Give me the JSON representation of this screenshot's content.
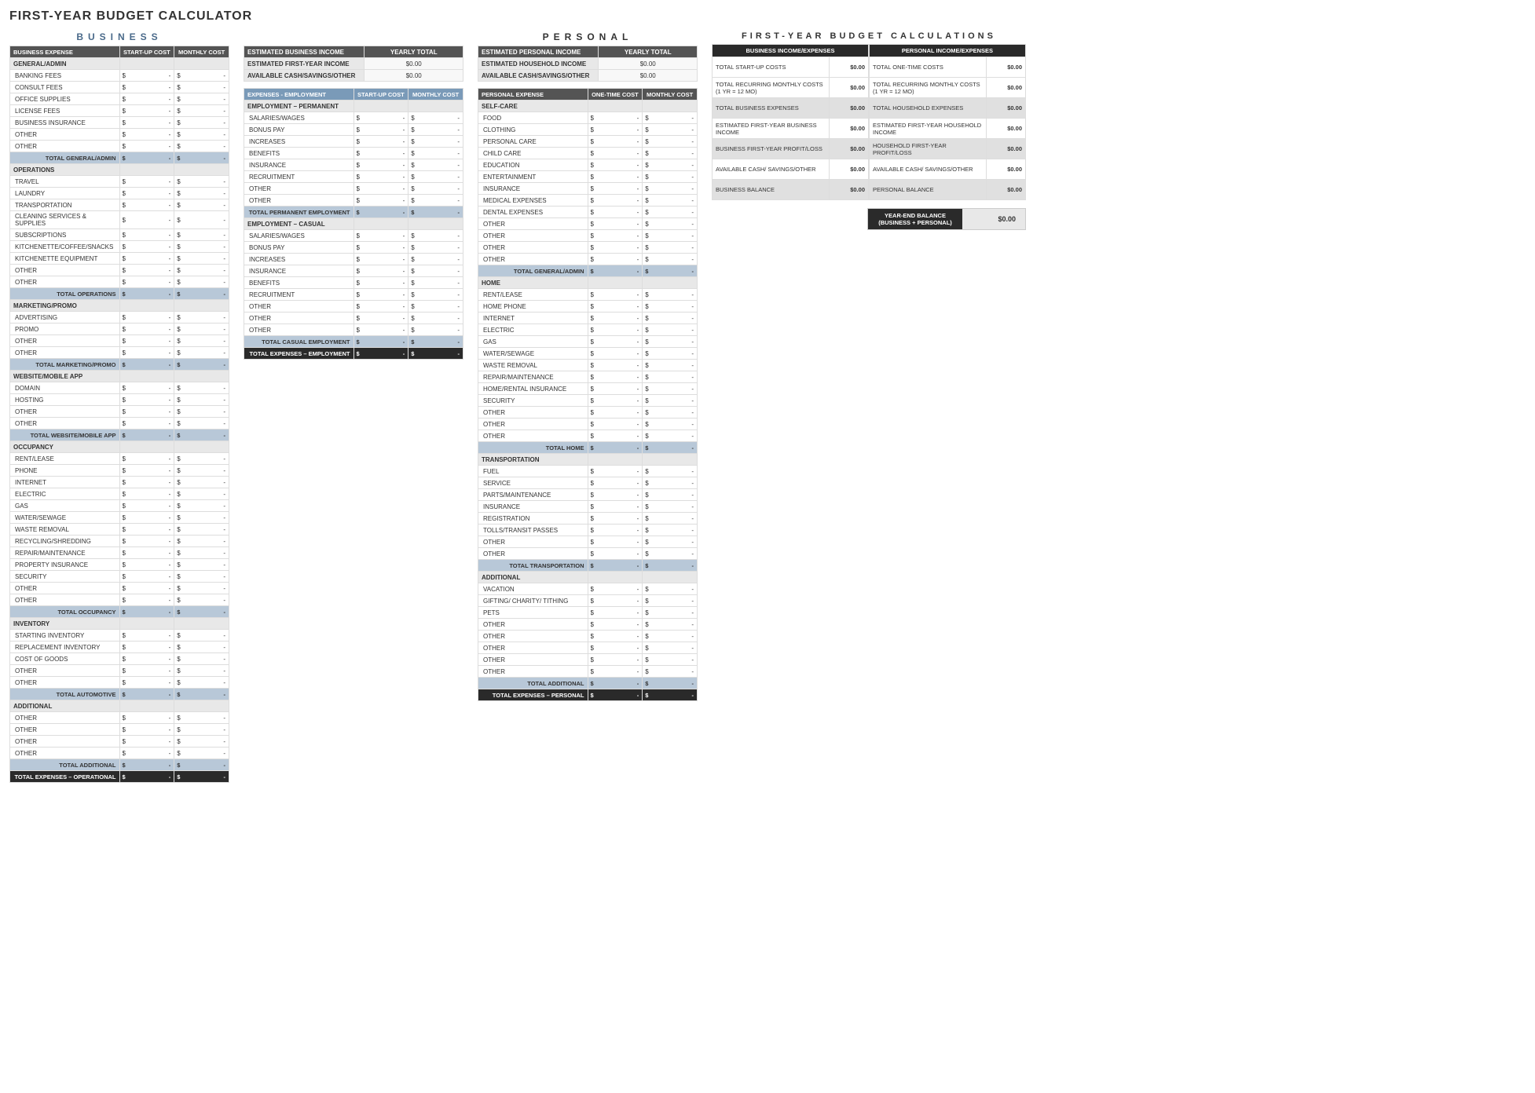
{
  "pageTitle": "FIRST-YEAR BUDGET CALCULATOR",
  "currency": "$",
  "dash": "-",
  "zeroDollar": "$0.00",
  "headers": {
    "businessExpense": "BUSINESS EXPENSE",
    "startupCost": "START-UP COST",
    "monthlyCost": "MONTHLY COST",
    "expensesEmployment": "EXPENSES - EMPLOYMENT",
    "personalExpense": "PERSONAL EXPENSE",
    "oneTimeCost": "ONE-TIME COST",
    "yearlyTotal": "YEARLY TOTAL"
  },
  "sectionTitles": {
    "business": "BUSINESS",
    "personal": "PERSONAL",
    "calculations": "FIRST-YEAR BUDGET CALCULATIONS"
  },
  "bizIncome": [
    {
      "label": "ESTIMATED BUSINESS INCOME",
      "valHeader": true
    },
    {
      "label": "ESTIMATED FIRST-YEAR INCOME"
    },
    {
      "label": "AVAILABLE CASH/SAVINGS/OTHER"
    }
  ],
  "persIncome": [
    {
      "label": "ESTIMATED PERSONAL INCOME",
      "valHeader": true
    },
    {
      "label": "ESTIMATED HOUSEHOLD INCOME"
    },
    {
      "label": "AVAILABLE CASH/SAVINGS/OTHER"
    }
  ],
  "bizOperational": [
    {
      "type": "cat",
      "label": "GENERAL/ADMIN"
    },
    {
      "type": "line",
      "label": "BANKING FEES"
    },
    {
      "type": "line",
      "label": "CONSULT FEES"
    },
    {
      "type": "line",
      "label": "OFFICE SUPPLIES"
    },
    {
      "type": "line",
      "label": "LICENSE FEES"
    },
    {
      "type": "line",
      "label": "BUSINESS INSURANCE"
    },
    {
      "type": "line",
      "label": "OTHER"
    },
    {
      "type": "line",
      "label": "OTHER"
    },
    {
      "type": "sub",
      "label": "TOTAL GENERAL/ADMIN"
    },
    {
      "type": "cat",
      "label": "OPERATIONS"
    },
    {
      "type": "line",
      "label": "TRAVEL"
    },
    {
      "type": "line",
      "label": "LAUNDRY"
    },
    {
      "type": "line",
      "label": "TRANSPORTATION"
    },
    {
      "type": "line",
      "label": "CLEANING SERVICES & SUPPLIES"
    },
    {
      "type": "line",
      "label": "SUBSCRIPTIONS"
    },
    {
      "type": "line",
      "label": "KITCHENETTE/COFFEE/SNACKS"
    },
    {
      "type": "line",
      "label": "KITCHENETTE EQUIPMENT"
    },
    {
      "type": "line",
      "label": "OTHER"
    },
    {
      "type": "line",
      "label": "OTHER"
    },
    {
      "type": "sub",
      "label": "TOTAL OPERATIONS"
    },
    {
      "type": "cat",
      "label": "MARKETING/PROMO"
    },
    {
      "type": "line",
      "label": "ADVERTISING"
    },
    {
      "type": "line",
      "label": "PROMO"
    },
    {
      "type": "line",
      "label": "OTHER"
    },
    {
      "type": "line",
      "label": "OTHER"
    },
    {
      "type": "sub",
      "label": "TOTAL MARKETING/PROMO"
    },
    {
      "type": "cat",
      "label": "WEBSITE/MOBILE APP"
    },
    {
      "type": "line",
      "label": "DOMAIN"
    },
    {
      "type": "line",
      "label": "HOSTING"
    },
    {
      "type": "line",
      "label": "OTHER"
    },
    {
      "type": "line",
      "label": "OTHER"
    },
    {
      "type": "sub",
      "label": "TOTAL WEBSITE/MOBILE APP"
    },
    {
      "type": "cat",
      "label": "OCCUPANCY"
    },
    {
      "type": "line",
      "label": "RENT/LEASE"
    },
    {
      "type": "line",
      "label": "PHONE"
    },
    {
      "type": "line",
      "label": "INTERNET"
    },
    {
      "type": "line",
      "label": "ELECTRIC"
    },
    {
      "type": "line",
      "label": "GAS"
    },
    {
      "type": "line",
      "label": "WATER/SEWAGE"
    },
    {
      "type": "line",
      "label": "WASTE REMOVAL"
    },
    {
      "type": "line",
      "label": "RECYCLING/SHREDDING"
    },
    {
      "type": "line",
      "label": "REPAIR/MAINTENANCE"
    },
    {
      "type": "line",
      "label": "PROPERTY INSURANCE"
    },
    {
      "type": "line",
      "label": "SECURITY"
    },
    {
      "type": "line",
      "label": "OTHER"
    },
    {
      "type": "line",
      "label": "OTHER"
    },
    {
      "type": "sub",
      "label": "TOTAL OCCUPANCY"
    },
    {
      "type": "cat",
      "label": "INVENTORY"
    },
    {
      "type": "line",
      "label": "STARTING INVENTORY"
    },
    {
      "type": "line",
      "label": "REPLACEMENT INVENTORY"
    },
    {
      "type": "line",
      "label": "COST OF GOODS"
    },
    {
      "type": "line",
      "label": "OTHER"
    },
    {
      "type": "line",
      "label": "OTHER"
    },
    {
      "type": "sub",
      "label": "TOTAL AUTOMOTIVE"
    },
    {
      "type": "cat",
      "label": "ADDITIONAL"
    },
    {
      "type": "line",
      "label": "OTHER"
    },
    {
      "type": "line",
      "label": "OTHER"
    },
    {
      "type": "line",
      "label": "OTHER"
    },
    {
      "type": "line",
      "label": "OTHER"
    },
    {
      "type": "sub",
      "label": "TOTAL ADDITIONAL"
    },
    {
      "type": "grand",
      "label": "TOTAL EXPENSES – OPERATIONAL"
    }
  ],
  "bizEmployment": [
    {
      "type": "cat",
      "label": "EMPLOYMENT – PERMANENT"
    },
    {
      "type": "line",
      "label": "SALARIES/WAGES"
    },
    {
      "type": "line",
      "label": "BONUS PAY"
    },
    {
      "type": "line",
      "label": "INCREASES"
    },
    {
      "type": "line",
      "label": "BENEFITS"
    },
    {
      "type": "line",
      "label": "INSURANCE"
    },
    {
      "type": "line",
      "label": "RECRUITMENT"
    },
    {
      "type": "line",
      "label": "OTHER"
    },
    {
      "type": "line",
      "label": "OTHER"
    },
    {
      "type": "sub",
      "label": "TOTAL PERMANENT EMPLOYMENT"
    },
    {
      "type": "cat",
      "label": "EMPLOYMENT – CASUAL"
    },
    {
      "type": "line",
      "label": "SALARIES/WAGES"
    },
    {
      "type": "line",
      "label": "BONUS PAY"
    },
    {
      "type": "line",
      "label": "INCREASES"
    },
    {
      "type": "line",
      "label": "INSURANCE"
    },
    {
      "type": "line",
      "label": "BENEFITS"
    },
    {
      "type": "line",
      "label": "RECRUITMENT"
    },
    {
      "type": "line",
      "label": "OTHER"
    },
    {
      "type": "line",
      "label": "OTHER"
    },
    {
      "type": "line",
      "label": "OTHER"
    },
    {
      "type": "sub",
      "label": "TOTAL CASUAL EMPLOYMENT"
    },
    {
      "type": "grand",
      "label": "TOTAL EXPENSES – EMPLOYMENT"
    }
  ],
  "personal": [
    {
      "type": "cat",
      "label": "SELF-CARE"
    },
    {
      "type": "line",
      "label": "FOOD"
    },
    {
      "type": "line",
      "label": "CLOTHING"
    },
    {
      "type": "line",
      "label": "PERSONAL CARE"
    },
    {
      "type": "line",
      "label": "CHILD CARE"
    },
    {
      "type": "line",
      "label": "EDUCATION"
    },
    {
      "type": "line",
      "label": "ENTERTAINMENT"
    },
    {
      "type": "line",
      "label": "INSURANCE"
    },
    {
      "type": "line",
      "label": "MEDICAL EXPENSES"
    },
    {
      "type": "line",
      "label": "DENTAL EXPENSES"
    },
    {
      "type": "line",
      "label": "OTHER"
    },
    {
      "type": "line",
      "label": "OTHER"
    },
    {
      "type": "line",
      "label": "OTHER"
    },
    {
      "type": "line",
      "label": "OTHER"
    },
    {
      "type": "sub",
      "label": "TOTAL GENERAL/ADMIN"
    },
    {
      "type": "cat",
      "label": "HOME"
    },
    {
      "type": "line",
      "label": "RENT/LEASE"
    },
    {
      "type": "line",
      "label": "HOME PHONE"
    },
    {
      "type": "line",
      "label": "INTERNET"
    },
    {
      "type": "line",
      "label": "ELECTRIC"
    },
    {
      "type": "line",
      "label": "GAS"
    },
    {
      "type": "line",
      "label": "WATER/SEWAGE"
    },
    {
      "type": "line",
      "label": "WASTE REMOVAL"
    },
    {
      "type": "line",
      "label": "REPAIR/MAINTENANCE"
    },
    {
      "type": "line",
      "label": "HOME/RENTAL INSURANCE"
    },
    {
      "type": "line",
      "label": "SECURITY"
    },
    {
      "type": "line",
      "label": "OTHER"
    },
    {
      "type": "line",
      "label": "OTHER"
    },
    {
      "type": "line",
      "label": "OTHER"
    },
    {
      "type": "sub",
      "label": "TOTAL HOME"
    },
    {
      "type": "cat",
      "label": "TRANSPORTATION"
    },
    {
      "type": "line",
      "label": "FUEL"
    },
    {
      "type": "line",
      "label": "SERVICE"
    },
    {
      "type": "line",
      "label": "PARTS/MAINTENANCE"
    },
    {
      "type": "line",
      "label": "INSURANCE"
    },
    {
      "type": "line",
      "label": "REGISTRATION"
    },
    {
      "type": "line",
      "label": "TOLLS/TRANSIT PASSES"
    },
    {
      "type": "line",
      "label": "OTHER"
    },
    {
      "type": "line",
      "label": "OTHER"
    },
    {
      "type": "sub",
      "label": "TOTAL TRANSPORTATION"
    },
    {
      "type": "cat",
      "label": "ADDITIONAL"
    },
    {
      "type": "line",
      "label": "VACATION"
    },
    {
      "type": "line",
      "label": "GIFTING/ CHARITY/ TITHING"
    },
    {
      "type": "line",
      "label": "PETS"
    },
    {
      "type": "line",
      "label": "OTHER"
    },
    {
      "type": "line",
      "label": "OTHER"
    },
    {
      "type": "line",
      "label": "OTHER"
    },
    {
      "type": "line",
      "label": "OTHER"
    },
    {
      "type": "line",
      "label": "OTHER"
    },
    {
      "type": "sub",
      "label": "TOTAL ADDITIONAL"
    },
    {
      "type": "grand",
      "label": "TOTAL EXPENSES – PERSONAL"
    }
  ],
  "calcBiz": {
    "header": "BUSINESS INCOME/EXPENSES",
    "rows": [
      {
        "label": "TOTAL START-UP COSTS",
        "shade": false
      },
      {
        "label": "TOTAL RECURRING MONTHLY COSTS (1 YR = 12 MO)",
        "shade": false
      },
      {
        "label": "TOTAL BUSINESS EXPENSES",
        "shade": true
      },
      {
        "label": "ESTIMATED FIRST-YEAR BUSINESS INCOME",
        "shade": false
      },
      {
        "label": "BUSINESS FIRST-YEAR PROFIT/LOSS",
        "shade": true
      },
      {
        "label": "AVAILABLE CASH/ SAVINGS/OTHER",
        "shade": false
      },
      {
        "label": "BUSINESS BALANCE",
        "shade": true
      }
    ]
  },
  "calcPers": {
    "header": "PERSONAL INCOME/EXPENSES",
    "rows": [
      {
        "label": "TOTAL ONE-TIME COSTS",
        "shade": false
      },
      {
        "label": "TOTAL RECURRING MONTHLY COSTS (1 YR = 12 MO)",
        "shade": false
      },
      {
        "label": "TOTAL HOUSEHOLD EXPENSES",
        "shade": true
      },
      {
        "label": "ESTIMATED FIRST-YEAR HOUSEHOLD INCOME",
        "shade": false
      },
      {
        "label": "HOUSEHOLD FIRST-YEAR PROFIT/LOSS",
        "shade": true
      },
      {
        "label": "AVAILABLE CASH/ SAVINGS/OTHER",
        "shade": false
      },
      {
        "label": "PERSONAL BALANCE",
        "shade": true
      }
    ]
  },
  "yearEnd": {
    "label": "YEAR-END BALANCE (BUSINESS + PERSONAL)",
    "value": "$0.00"
  },
  "colors": {
    "headerDark": "#545454",
    "headerBlue": "#7a9ab8",
    "subtotalBlue": "#b8c8d8",
    "grandTotal": "#2a2a2a",
    "catBg": "#e8e8e8"
  }
}
